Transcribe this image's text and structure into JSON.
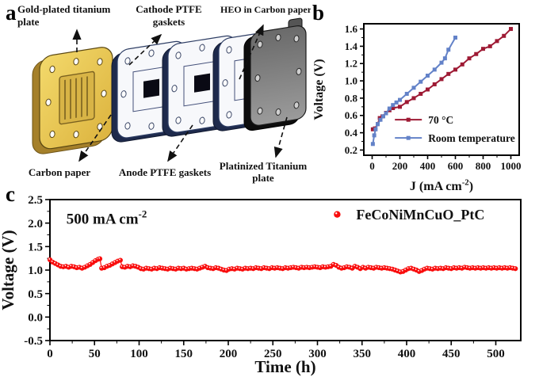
{
  "figure": {
    "panel_labels": {
      "a": "a",
      "b": "b",
      "c": "c"
    }
  },
  "diagram": {
    "labels": {
      "gold_line1": "Gold-plated titanium",
      "gold_line2": "plate",
      "cathode_line1": "Cathode PTFE",
      "cathode_line2": "gaskets",
      "heo": "HEO in Carbon paper",
      "carbon": "Carbon paper",
      "anode": "Anode PTFE gaskets",
      "platinized_line1": "Platinized Titanium",
      "platinized_line2": "plate"
    },
    "colors": {
      "gold": "#e8c554",
      "gold_dark": "#a5802a",
      "gasket_face": "#f7f8fb",
      "gasket_edge": "#1e2a4c",
      "plate_gray": "#8e8e8e",
      "window_black": "#0a0a14"
    }
  },
  "chart_data": [
    {
      "id": "polarization",
      "type": "line",
      "xlabel": {
        "pre": "J (mA cm",
        "sup": "-2",
        "post": ")"
      },
      "ylabel": "Voltage (V)",
      "xlim": [
        -60,
        1060
      ],
      "ylim": [
        0.14,
        1.66
      ],
      "xticks": {
        "values": [
          0,
          200,
          400,
          600,
          800,
          1000
        ],
        "labels": [
          "0",
          "200",
          "400",
          "600",
          "800",
          "1000"
        ]
      },
      "yticks": {
        "values": [
          0.2,
          0.4,
          0.6,
          0.8,
          1.0,
          1.2,
          1.4,
          1.6
        ],
        "labels": [
          "0.2",
          "0.4",
          "0.6",
          "0.8",
          "1.0",
          "1.2",
          "1.4",
          "1.6"
        ]
      },
      "grid": false,
      "legend": {
        "fx": 0.2,
        "fy": 0.73,
        "row_gap": 23,
        "sample": 34,
        "text_dx": 8,
        "font": 13.5,
        "position": "inside-bottom-left"
      },
      "series": [
        {
          "name": "70 °C",
          "color": "#9e1a34",
          "marker": "square",
          "line": true,
          "points": [
            [
              5,
              0.44
            ],
            [
              20,
              0.45
            ],
            [
              40,
              0.5
            ],
            [
              55,
              0.57
            ],
            [
              75,
              0.59
            ],
            [
              100,
              0.63
            ],
            [
              125,
              0.66
            ],
            [
              150,
              0.685
            ],
            [
              200,
              0.7
            ],
            [
              250,
              0.755
            ],
            [
              300,
              0.8
            ],
            [
              350,
              0.85
            ],
            [
              400,
              0.9
            ],
            [
              450,
              0.96
            ],
            [
              500,
              1.02
            ],
            [
              550,
              1.08
            ],
            [
              600,
              1.13
            ],
            [
              650,
              1.19
            ],
            [
              700,
              1.26
            ],
            [
              750,
              1.31
            ],
            [
              800,
              1.37
            ],
            [
              850,
              1.4
            ],
            [
              900,
              1.46
            ],
            [
              950,
              1.52
            ],
            [
              1000,
              1.6
            ]
          ]
        },
        {
          "name": "Room temperature",
          "color": "#6382c8",
          "marker": "square",
          "line": true,
          "points": [
            [
              5,
              0.27
            ],
            [
              15,
              0.37
            ],
            [
              25,
              0.44
            ],
            [
              40,
              0.5
            ],
            [
              60,
              0.55
            ],
            [
              80,
              0.59
            ],
            [
              100,
              0.625
            ],
            [
              125,
              0.68
            ],
            [
              150,
              0.72
            ],
            [
              175,
              0.75
            ],
            [
              200,
              0.78
            ],
            [
              250,
              0.85
            ],
            [
              300,
              0.92
            ],
            [
              350,
              0.99
            ],
            [
              400,
              1.06
            ],
            [
              450,
              1.13
            ],
            [
              500,
              1.21
            ],
            [
              525,
              1.26
            ],
            [
              550,
              1.36
            ],
            [
              600,
              1.5
            ]
          ]
        }
      ]
    },
    {
      "id": "stability",
      "type": "scatter",
      "xlabel": {
        "pre": "Time (h)",
        "sup": "",
        "post": ""
      },
      "ylabel": "Voltage (V)",
      "xlim": [
        0,
        528
      ],
      "ylim": [
        -0.5,
        2.5
      ],
      "xticks": {
        "values": [
          0,
          50,
          100,
          150,
          200,
          250,
          300,
          350,
          400,
          450,
          500
        ],
        "labels": [
          "0",
          "50",
          "100",
          "150",
          "200",
          "250",
          "300",
          "350",
          "400",
          "450",
          "500"
        ]
      },
      "yticks": {
        "values": [
          -0.5,
          0.0,
          0.5,
          1.0,
          1.5,
          2.0,
          2.5
        ],
        "labels": [
          "-0.5",
          "0.0",
          "0.5",
          "1.0",
          "1.5",
          "2.0",
          "2.5"
        ]
      },
      "grid": false,
      "annotation": {
        "pre": "500 mA cm",
        "sup": "-2",
        "fx": 0.035,
        "fy": 0.17,
        "font": 19
      },
      "legend": {
        "fx": 0.6,
        "fy": 0.105,
        "row_gap": 0,
        "sample": 0,
        "text_dx": 30,
        "font": 18,
        "position": "inside-top-right"
      },
      "series": [
        {
          "name": "FeCoNiMnCuO_PtC",
          "color": "#f90d0d",
          "marker": "circle-dot",
          "line": true,
          "points": [
            [
              0,
              1.22
            ],
            [
              3,
              1.17
            ],
            [
              6,
              1.14
            ],
            [
              9,
              1.11
            ],
            [
              12,
              1.08
            ],
            [
              15,
              1.07
            ],
            [
              18,
              1.08
            ],
            [
              21,
              1.06
            ],
            [
              24,
              1.08
            ],
            [
              27,
              1.07
            ],
            [
              30,
              1.05
            ],
            [
              33,
              1.06
            ],
            [
              36,
              1.04
            ],
            [
              39,
              1.06
            ],
            [
              42,
              1.09
            ],
            [
              45,
              1.12
            ],
            [
              48,
              1.16
            ],
            [
              51,
              1.2
            ],
            [
              54,
              1.23
            ],
            [
              56,
              1.24
            ],
            [
              58,
              1.04
            ],
            [
              61,
              1.05
            ],
            [
              64,
              1.08
            ],
            [
              67,
              1.1
            ],
            [
              70,
              1.13
            ],
            [
              73,
              1.16
            ],
            [
              76,
              1.19
            ],
            [
              79,
              1.21
            ],
            [
              81,
              1.07
            ],
            [
              84,
              1.06
            ],
            [
              87,
              1.08
            ],
            [
              90,
              1.07
            ],
            [
              93,
              1.09
            ],
            [
              96,
              1.08
            ],
            [
              99,
              1.06
            ],
            [
              102,
              1.03
            ],
            [
              105,
              1.02
            ],
            [
              108,
              1.04
            ],
            [
              111,
              1.03
            ],
            [
              114,
              1.02
            ],
            [
              117,
              1.04
            ],
            [
              120,
              1.03
            ],
            [
              123,
              1.05
            ],
            [
              126,
              1.04
            ],
            [
              129,
              1.03
            ],
            [
              132,
              1.02
            ],
            [
              135,
              1.04
            ],
            [
              138,
              1.03
            ],
            [
              141,
              1.02
            ],
            [
              144,
              1.04
            ],
            [
              147,
              1.03
            ],
            [
              150,
              1.04
            ],
            [
              153,
              1.02
            ],
            [
              156,
              1.03
            ],
            [
              159,
              1.04
            ],
            [
              162,
              1.03
            ],
            [
              165,
              1.02
            ],
            [
              168,
              1.04
            ],
            [
              171,
              1.06
            ],
            [
              174,
              1.08
            ],
            [
              177,
              1.05
            ],
            [
              180,
              1.04
            ],
            [
              183,
              1.03
            ],
            [
              186,
              1.05
            ],
            [
              189,
              1.04
            ],
            [
              192,
              1.02
            ],
            [
              195,
              1.0
            ],
            [
              198,
              0.99
            ],
            [
              201,
              1.02
            ],
            [
              204,
              1.03
            ],
            [
              207,
              1.02
            ],
            [
              210,
              1.04
            ],
            [
              213,
              1.03
            ],
            [
              216,
              1.02
            ],
            [
              219,
              1.04
            ],
            [
              222,
              1.03
            ],
            [
              225,
              1.04
            ],
            [
              228,
              1.03
            ],
            [
              231,
              1.05
            ],
            [
              234,
              1.04
            ],
            [
              237,
              1.03
            ],
            [
              240,
              1.05
            ],
            [
              243,
              1.04
            ],
            [
              246,
              1.03
            ],
            [
              249,
              1.05
            ],
            [
              252,
              1.04
            ],
            [
              255,
              1.05
            ],
            [
              258,
              1.04
            ],
            [
              261,
              1.03
            ],
            [
              264,
              1.05
            ],
            [
              267,
              1.04
            ],
            [
              270,
              1.05
            ],
            [
              273,
              1.06
            ],
            [
              276,
              1.05
            ],
            [
              279,
              1.04
            ],
            [
              282,
              1.06
            ],
            [
              285,
              1.05
            ],
            [
              288,
              1.06
            ],
            [
              291,
              1.05
            ],
            [
              294,
              1.06
            ],
            [
              297,
              1.07
            ],
            [
              300,
              1.06
            ],
            [
              303,
              1.05
            ],
            [
              306,
              1.07
            ],
            [
              309,
              1.06
            ],
            [
              312,
              1.07
            ],
            [
              315,
              1.08
            ],
            [
              318,
              1.12
            ],
            [
              321,
              1.1
            ],
            [
              324,
              1.06
            ],
            [
              327,
              1.04
            ],
            [
              330,
              1.05
            ],
            [
              333,
              1.07
            ],
            [
              336,
              1.06
            ],
            [
              339,
              1.04
            ],
            [
              342,
              1.08
            ],
            [
              345,
              1.06
            ],
            [
              348,
              1.03
            ],
            [
              351,
              1.06
            ],
            [
              354,
              1.04
            ],
            [
              357,
              1.06
            ],
            [
              360,
              1.05
            ],
            [
              363,
              1.04
            ],
            [
              366,
              1.06
            ],
            [
              369,
              1.05
            ],
            [
              372,
              1.04
            ],
            [
              375,
              1.05
            ],
            [
              378,
              1.04
            ],
            [
              381,
              1.03
            ],
            [
              384,
              1.02
            ],
            [
              387,
              1.0
            ],
            [
              390,
              0.98
            ],
            [
              393,
              0.96
            ],
            [
              396,
              0.97
            ],
            [
              399,
              1.0
            ],
            [
              402,
              1.03
            ],
            [
              405,
              1.04
            ],
            [
              408,
              1.02
            ],
            [
              411,
              1.0
            ],
            [
              414,
              0.97
            ],
            [
              417,
              0.99
            ],
            [
              420,
              1.02
            ],
            [
              423,
              1.04
            ],
            [
              426,
              1.03
            ],
            [
              429,
              1.02
            ],
            [
              432,
              1.04
            ],
            [
              435,
              1.03
            ],
            [
              438,
              1.04
            ],
            [
              441,
              1.03
            ],
            [
              444,
              1.05
            ],
            [
              447,
              1.04
            ],
            [
              450,
              1.03
            ],
            [
              453,
              1.05
            ],
            [
              456,
              1.04
            ],
            [
              459,
              1.05
            ],
            [
              462,
              1.04
            ],
            [
              465,
              1.06
            ],
            [
              468,
              1.05
            ],
            [
              471,
              1.04
            ],
            [
              474,
              1.05
            ],
            [
              477,
              1.04
            ],
            [
              480,
              1.05
            ],
            [
              483,
              1.04
            ],
            [
              486,
              1.05
            ],
            [
              489,
              1.04
            ],
            [
              492,
              1.05
            ],
            [
              495,
              1.04
            ],
            [
              498,
              1.05
            ],
            [
              501,
              1.04
            ],
            [
              504,
              1.05
            ],
            [
              507,
              1.04
            ],
            [
              510,
              1.05
            ],
            [
              513,
              1.04
            ],
            [
              516,
              1.05
            ],
            [
              519,
              1.04
            ],
            [
              522,
              1.03
            ]
          ]
        }
      ]
    }
  ]
}
